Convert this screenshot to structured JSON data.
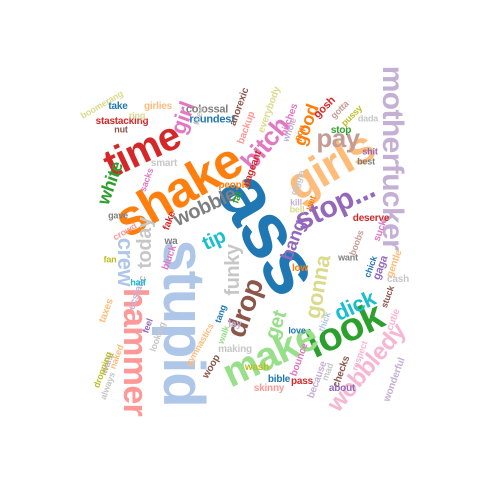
{
  "words": [
    {
      "text": "ass",
      "color": "#1f77b4"
    },
    {
      "text": "stupid",
      "color": "#aec7e8"
    },
    {
      "text": "shake",
      "color": "#ff7f0e"
    },
    {
      "text": "motherfucker",
      "color": "#c5b0d5"
    },
    {
      "text": "girls",
      "color": "#ffbb78"
    },
    {
      "text": "hammer",
      "color": "#ff9896"
    },
    {
      "text": "look",
      "color": "#2ca02c"
    },
    {
      "text": "make",
      "color": "#98df8a"
    },
    {
      "text": "time",
      "color": "#d62728"
    },
    {
      "text": "stop...",
      "color": "#9467bd"
    },
    {
      "text": "bitch",
      "color": "#e377c2"
    },
    {
      "text": "wobbledy",
      "color": "#f7b6d2"
    },
    {
      "text": "pay",
      "color": "#c49c94"
    },
    {
      "text": "drop",
      "color": "#8c564b"
    },
    {
      "text": "gonna",
      "color": "#dbdb8d"
    },
    {
      "text": "dick",
      "color": "#17becf"
    },
    {
      "text": "wobble",
      "color": "#7f7f7f"
    },
    {
      "text": "crew",
      "color": "#aec7e8"
    },
    {
      "text": "today",
      "color": "#c7c7c7"
    },
    {
      "text": "white",
      "color": "#2ca02c"
    },
    {
      "text": "girl",
      "color": "#e377c2"
    },
    {
      "text": "good",
      "color": "#ff7f0e"
    },
    {
      "text": "tip",
      "color": "#17becf"
    },
    {
      "text": "funky",
      "color": "#c7c7c7"
    },
    {
      "text": "get",
      "color": "#98df8a"
    },
    {
      "text": "bang",
      "color": "#9467bd"
    },
    {
      "text": "colossal",
      "color": "#7f7f7f"
    },
    {
      "text": "roundest",
      "color": "#1f77b4"
    },
    {
      "text": "anorexic",
      "color": "#8c564b"
    },
    {
      "text": "everybody",
      "color": "#dbdb8d"
    },
    {
      "text": "backup",
      "color": "#ff9896"
    },
    {
      "text": "bitches",
      "color": "#e377c2"
    },
    {
      "text": "whole",
      "color": "#c5b0d5"
    },
    {
      "text": "pop",
      "color": "#ff7f0e"
    },
    {
      "text": "gosh",
      "color": "#d62728"
    },
    {
      "text": "gotta",
      "color": "#c49c94"
    },
    {
      "text": "pussy",
      "color": "#bcbd22"
    },
    {
      "text": "stop",
      "color": "#2ca02c"
    },
    {
      "text": "dada",
      "color": "#c7c7c7"
    },
    {
      "text": "shit",
      "color": "#9467bd"
    },
    {
      "text": "best",
      "color": "#7f7f7f"
    },
    {
      "text": "smart",
      "color": "#c7c7c7"
    },
    {
      "text": "sacks",
      "color": "#e377c2"
    },
    {
      "text": "stastacking",
      "color": "#d62728"
    },
    {
      "text": "girlies",
      "color": "#ffbb78"
    },
    {
      "text": "take",
      "color": "#1f77b4"
    },
    {
      "text": "ring",
      "color": "#dbdb8d"
    },
    {
      "text": "nut",
      "color": "#8c564b"
    },
    {
      "text": "boomerang",
      "color": "#dbdb8d"
    },
    {
      "text": "gave",
      "color": "#7f7f7f"
    },
    {
      "text": "crowd",
      "color": "#ff9896"
    },
    {
      "text": "fake",
      "color": "#d62728"
    },
    {
      "text": "wa",
      "color": "#7f7f7f"
    },
    {
      "text": "bluck",
      "color": "#e377c2"
    },
    {
      "text": "ecstatic",
      "color": "#c5b0d5"
    },
    {
      "text": "people",
      "color": "#ff7f0e"
    },
    {
      "text": "fat",
      "color": "#2ca02c"
    },
    {
      "text": "deserve",
      "color": "#d62728"
    },
    {
      "text": "giggle",
      "color": "#c7c7c7"
    },
    {
      "text": "suck",
      "color": "#e377c2"
    },
    {
      "text": "kill",
      "color": "#c5b0d5"
    },
    {
      "text": "bell",
      "color": "#dbdb8d"
    },
    {
      "text": "boobs",
      "color": "#c49c94"
    },
    {
      "text": "want",
      "color": "#7f7f7f"
    },
    {
      "text": "gaga",
      "color": "#9467bd"
    },
    {
      "text": "gentle",
      "color": "#ffbb78"
    },
    {
      "text": "chick",
      "color": "#1f77b4"
    },
    {
      "text": "cash",
      "color": "#c7c7c7"
    },
    {
      "text": "stuck",
      "color": "#8c564b"
    },
    {
      "text": "cutie",
      "color": "#f7b6d2"
    },
    {
      "text": "low",
      "color": "#ff7f0e"
    },
    {
      "text": "tang",
      "color": "#1f77b4"
    },
    {
      "text": "walk",
      "color": "#98df8a"
    },
    {
      "text": "lay",
      "color": "#c5b0d5"
    },
    {
      "text": "making",
      "color": "#c7c7c7"
    },
    {
      "text": "gymnastics",
      "color": "#ffbb78"
    },
    {
      "text": "woop",
      "color": "#8c564b"
    },
    {
      "text": "wash",
      "color": "#bcbd22"
    },
    {
      "text": "skinny",
      "color": "#ff9896"
    },
    {
      "text": "bible",
      "color": "#1f77b4"
    },
    {
      "text": "bounce",
      "color": "#e377c2"
    },
    {
      "text": "pass",
      "color": "#d62728"
    },
    {
      "text": "because",
      "color": "#c5b0d5"
    },
    {
      "text": "mad",
      "color": "#c7c7c7"
    },
    {
      "text": "checks",
      "color": "#8c564b"
    },
    {
      "text": "respect",
      "color": "#f7b6d2"
    },
    {
      "text": "about",
      "color": "#9467bd"
    },
    {
      "text": "wonderful",
      "color": "#c5b0d5"
    },
    {
      "text": "love",
      "color": "#1f77b4"
    },
    {
      "text": "thick",
      "color": "#aec7e8"
    },
    {
      "text": "fan",
      "color": "#bcbd22"
    },
    {
      "text": "naked",
      "color": "#ffbb78"
    },
    {
      "text": "waist",
      "color": "#c5b0d5"
    },
    {
      "text": "dropping",
      "color": "#bcbd22"
    },
    {
      "text": "always",
      "color": "#c7c7c7"
    },
    {
      "text": "taxes",
      "color": "#ffbb78"
    },
    {
      "text": "half",
      "color": "#17becf"
    },
    {
      "text": "looking",
      "color": "#c7c7c7"
    },
    {
      "text": "feel",
      "color": "#9467bd"
    },
    {
      "text": "pageant",
      "color": "#d62728"
    },
    {
      "text": "tired",
      "color": "#c7c7c7"
    },
    {
      "text": "wet",
      "color": "#ff7f0e"
    }
  ]
}
